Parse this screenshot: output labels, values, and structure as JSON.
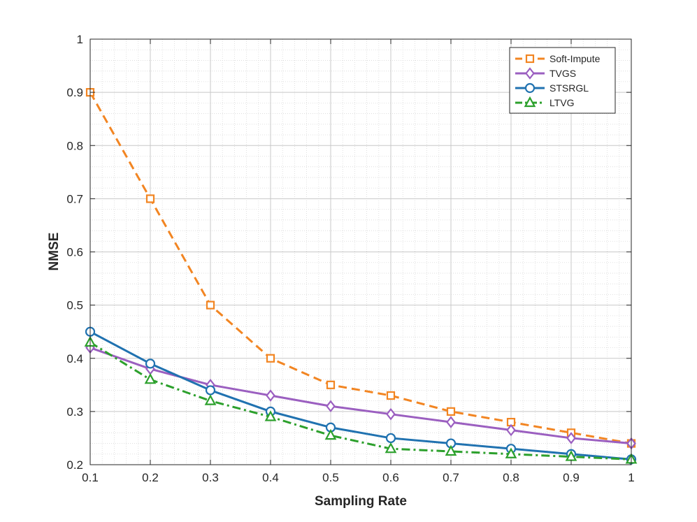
{
  "chart_data": {
    "type": "line",
    "title": "",
    "xlabel": "Sampling Rate",
    "ylabel": "NMSE",
    "xlim": [
      0.1,
      1.0
    ],
    "ylim": [
      0.2,
      1.0
    ],
    "xticks": [
      0.1,
      0.2,
      0.3,
      0.4,
      0.5,
      0.6,
      0.7,
      0.8,
      0.9,
      1.0
    ],
    "xtick_labels": [
      "0.1",
      "0.2",
      "0.3",
      "0.4",
      "0.5",
      "0.6",
      "0.7",
      "0.8",
      "0.9",
      "1"
    ],
    "yticks": [
      0.2,
      0.3,
      0.4,
      0.5,
      0.6,
      0.7,
      0.8,
      0.9,
      1.0
    ],
    "ytick_labels": [
      "0.2",
      "0.3",
      "0.4",
      "0.5",
      "0.6",
      "0.7",
      "0.8",
      "0.9",
      "1"
    ],
    "grid": true,
    "minor_grid": true,
    "legend_position": "top-right",
    "x": [
      0.1,
      0.2,
      0.3,
      0.4,
      0.5,
      0.6,
      0.7,
      0.8,
      0.9,
      1.0
    ],
    "series": [
      {
        "name": "Soft-Impute",
        "color": "#F28522",
        "line_style": "dashed",
        "marker": "square",
        "values": [
          0.9,
          0.7,
          0.5,
          0.4,
          0.35,
          0.33,
          0.3,
          0.28,
          0.26,
          0.24
        ]
      },
      {
        "name": "TVGS",
        "color": "#9B5FC0",
        "line_style": "solid",
        "marker": "diamond",
        "values": [
          0.42,
          0.38,
          0.35,
          0.33,
          0.31,
          0.295,
          0.28,
          0.265,
          0.25,
          0.24
        ]
      },
      {
        "name": "STSRGL",
        "color": "#2072B0",
        "line_style": "solid",
        "marker": "circle",
        "values": [
          0.45,
          0.39,
          0.34,
          0.3,
          0.27,
          0.25,
          0.24,
          0.23,
          0.22,
          0.21
        ]
      },
      {
        "name": "LTVG",
        "color": "#2CA02C",
        "line_style": "dashdot",
        "marker": "triangle",
        "values": [
          0.43,
          0.36,
          0.32,
          0.29,
          0.255,
          0.23,
          0.225,
          0.22,
          0.215,
          0.21
        ]
      }
    ]
  }
}
